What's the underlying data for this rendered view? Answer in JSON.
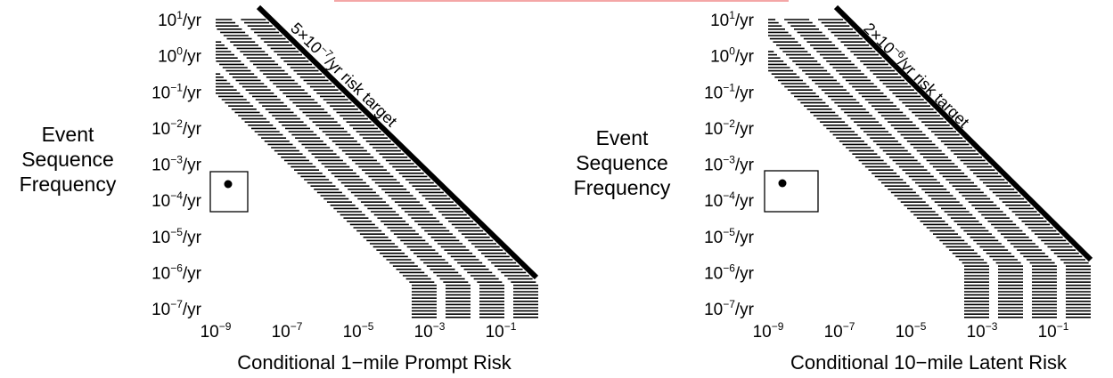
{
  "header": {
    "accent_color": "#f4a6a6"
  },
  "chart_data": [
    {
      "type": "line",
      "title": "",
      "ylabel_lines": [
        "Event",
        "Sequence",
        "Frequency"
      ],
      "xlabel": "Conditional 1−mile Prompt Risk",
      "x_scale": "log",
      "y_scale": "log",
      "xlim": [
        1e-09,
        0.5
      ],
      "ylim": [
        1e-07,
        10
      ],
      "x_ticks": [
        {
          "base": "10",
          "exp": "−9"
        },
        {
          "base": "10",
          "exp": "−7"
        },
        {
          "base": "10",
          "exp": "−5"
        },
        {
          "base": "10",
          "exp": "−3"
        },
        {
          "base": "10",
          "exp": "−1"
        }
      ],
      "y_ticks": [
        {
          "base": "10",
          "exp": "1",
          "unit": "/yr"
        },
        {
          "base": "10",
          "exp": "0",
          "unit": "/yr"
        },
        {
          "base": "10",
          "exp": "−1",
          "unit": "/yr"
        },
        {
          "base": "10",
          "exp": "−2",
          "unit": "/yr"
        },
        {
          "base": "10",
          "exp": "−3",
          "unit": "/yr"
        },
        {
          "base": "10",
          "exp": "−4",
          "unit": "/yr"
        },
        {
          "base": "10",
          "exp": "−5",
          "unit": "/yr"
        },
        {
          "base": "10",
          "exp": "−6",
          "unit": "/yr"
        },
        {
          "base": "10",
          "exp": "−7",
          "unit": "/yr"
        }
      ],
      "risk_target": {
        "value": 5e-07,
        "label_parts": {
          "pre": "5×10",
          "exp": "−7",
          "post": "/yr risk target"
        },
        "line_x": [
          5e-08,
          0.5
        ],
        "line_y": [
          10,
          1e-06
        ]
      },
      "point": {
        "x": 1e-09,
        "y": 0.00025
      },
      "hatched_region": "below risk target line",
      "grid": false
    },
    {
      "type": "line",
      "title": "",
      "ylabel_lines": [
        "Event",
        "Sequence",
        "Frequency"
      ],
      "xlabel": "Conditional 10−mile Latent Risk",
      "x_scale": "log",
      "y_scale": "log",
      "xlim": [
        1e-09,
        0.5
      ],
      "ylim": [
        1e-07,
        10
      ],
      "x_ticks": [
        {
          "base": "10",
          "exp": "−9"
        },
        {
          "base": "10",
          "exp": "−7"
        },
        {
          "base": "10",
          "exp": "−5"
        },
        {
          "base": "10",
          "exp": "−3"
        },
        {
          "base": "10",
          "exp": "−1"
        }
      ],
      "y_ticks": [
        {
          "base": "10",
          "exp": "1",
          "unit": "/yr"
        },
        {
          "base": "10",
          "exp": "0",
          "unit": "/yr"
        },
        {
          "base": "10",
          "exp": "−1",
          "unit": "/yr"
        },
        {
          "base": "10",
          "exp": "−2",
          "unit": "/yr"
        },
        {
          "base": "10",
          "exp": "−3",
          "unit": "/yr"
        },
        {
          "base": "10",
          "exp": "−4",
          "unit": "/yr"
        },
        {
          "base": "10",
          "exp": "−5",
          "unit": "/yr"
        },
        {
          "base": "10",
          "exp": "−6",
          "unit": "/yr"
        },
        {
          "base": "10",
          "exp": "−7",
          "unit": "/yr"
        }
      ],
      "risk_target": {
        "value": 2e-06,
        "label_parts": {
          "pre": "2×10",
          "exp": "−6",
          "post": "/yr risk target"
        },
        "line_x": [
          2e-07,
          0.5
        ],
        "line_y": [
          10,
          4e-06
        ]
      },
      "point": {
        "x": 1e-09,
        "y": 0.00025
      },
      "hatched_region": "below risk target line",
      "grid": false
    }
  ]
}
